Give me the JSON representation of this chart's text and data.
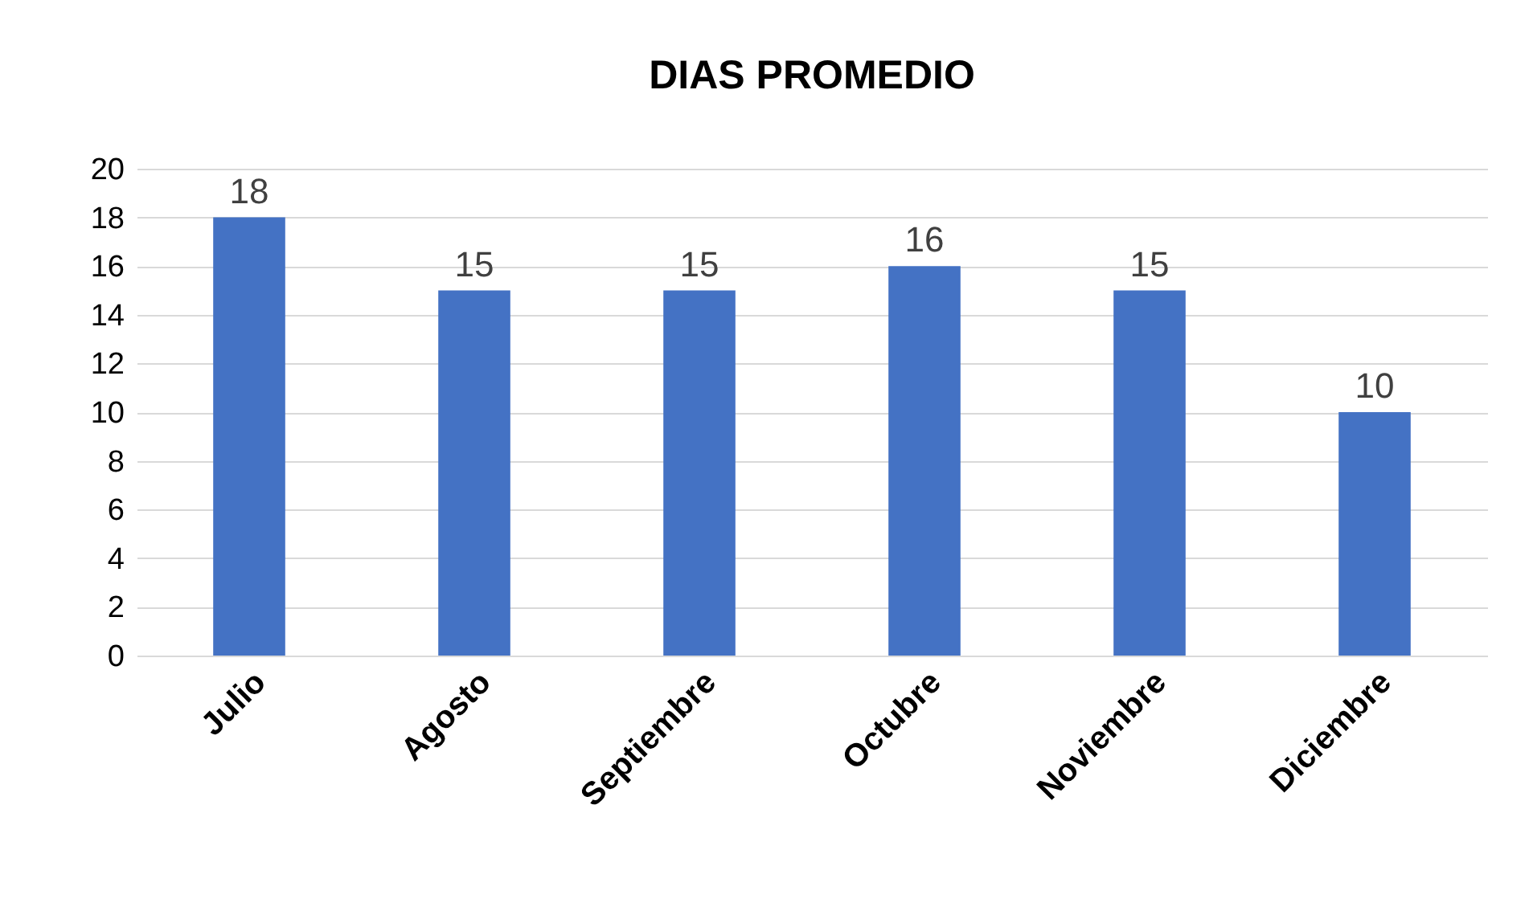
{
  "chart_data": {
    "type": "bar",
    "title": "DIAS PROMEDIO",
    "categories": [
      "Julio",
      "Agosto",
      "Septiembre",
      "Octubre",
      "Noviembre",
      "Diciembre"
    ],
    "values": [
      18,
      15,
      15,
      16,
      15,
      10
    ],
    "color": "#4472c4",
    "ylim": [
      0,
      20
    ],
    "yticks": [
      0,
      2,
      4,
      6,
      8,
      10,
      12,
      14,
      16,
      18,
      20
    ],
    "grid": "y",
    "data_labels": true
  }
}
